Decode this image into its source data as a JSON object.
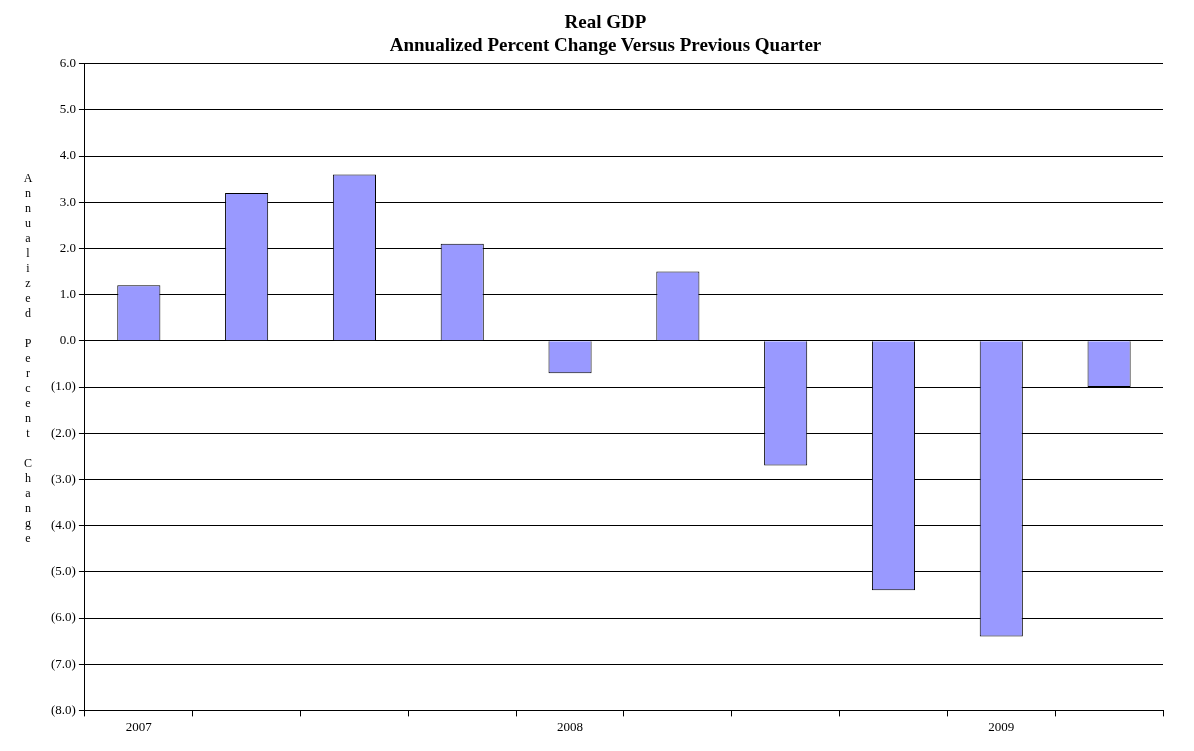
{
  "chart_data": {
    "type": "bar",
    "title": "Real GDP",
    "subtitle": "Annualized Percent Change Versus Previous Quarter",
    "ylabel": "Annualized Percent Change",
    "categories": [
      "2007",
      null,
      null,
      null,
      "2008",
      null,
      null,
      null,
      "2009",
      null
    ],
    "values": [
      1.2,
      3.2,
      3.6,
      2.1,
      -0.7,
      1.5,
      -2.7,
      -5.4,
      -6.4,
      -1.0
    ],
    "color": "#9999ff",
    "ylim": [
      -8,
      6
    ],
    "yticks": [
      {
        "value": -8,
        "label": "(8.0)"
      },
      {
        "value": -7,
        "label": "(7.0)"
      },
      {
        "value": -6,
        "label": "(6.0)"
      },
      {
        "value": -5,
        "label": "(5.0)"
      },
      {
        "value": -4,
        "label": "(4.0)"
      },
      {
        "value": -3,
        "label": "(3.0)"
      },
      {
        "value": -2,
        "label": "(2.0)"
      },
      {
        "value": -1,
        "label": "(1.0)"
      },
      {
        "value": 0,
        "label": "0.0"
      },
      {
        "value": 1,
        "label": "1.0"
      },
      {
        "value": 2,
        "label": "2.0"
      },
      {
        "value": 3,
        "label": "3.0"
      },
      {
        "value": 4,
        "label": "4.0"
      },
      {
        "value": 5,
        "label": "5.0"
      },
      {
        "value": 6,
        "label": "6.0"
      }
    ],
    "grid": "y",
    "legend": false
  }
}
